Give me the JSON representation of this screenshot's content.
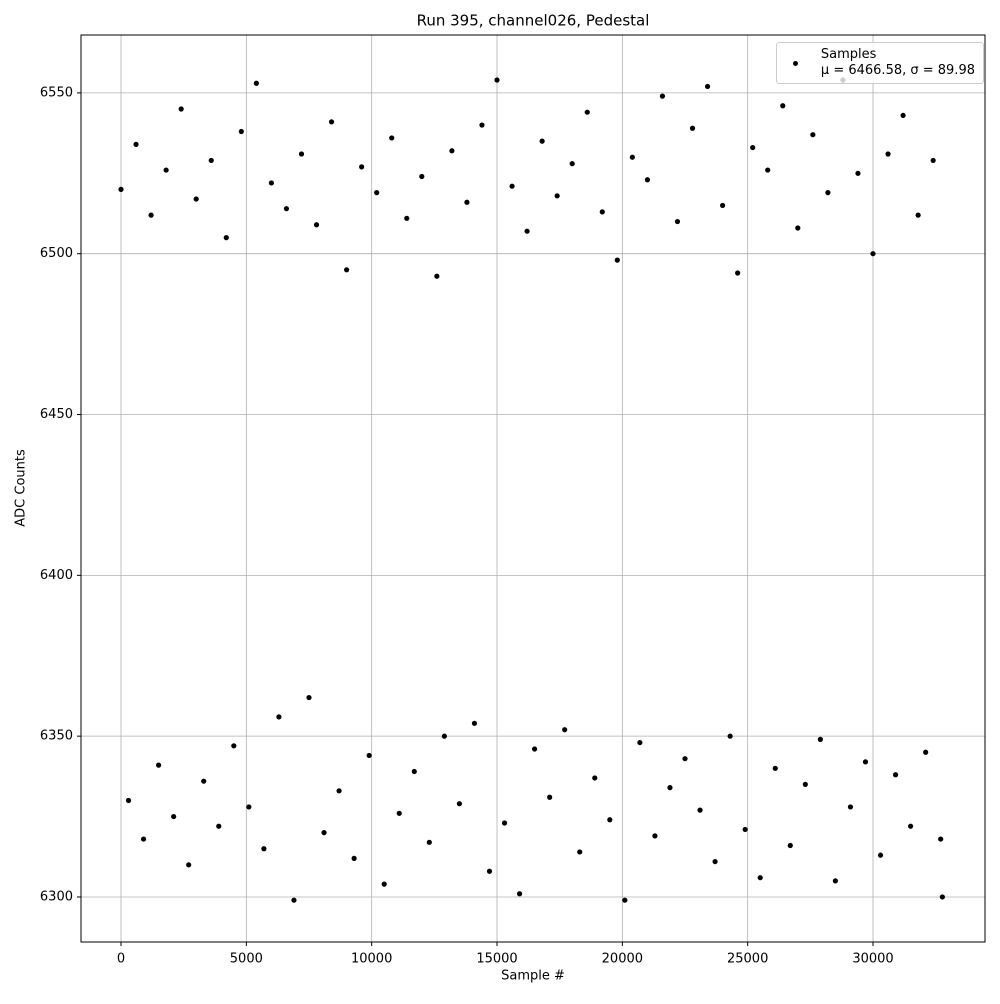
{
  "chart_data": {
    "type": "scatter",
    "title": "Run 395, channel026, Pedestal",
    "x_label": "Sample #",
    "y_label": "ADC Counts",
    "xlim": [
      -1596,
      34468
    ],
    "ylim": [
      6286,
      6568
    ],
    "xticks": [
      0,
      5000,
      10000,
      15000,
      20000,
      25000,
      30000
    ],
    "yticks": [
      6300,
      6350,
      6400,
      6450,
      6500,
      6550
    ],
    "grid": true,
    "legend_position": "upper right",
    "series": [
      {
        "name": "Samples\nμ = 6466.58, σ = 89.98",
        "color": "#000000",
        "x": [
          0,
          300,
          600,
          900,
          1200,
          1500,
          1800,
          2100,
          2400,
          2700,
          3000,
          3300,
          3600,
          3900,
          4200,
          4500,
          4800,
          5100,
          5400,
          5700,
          6000,
          6300,
          6600,
          6900,
          7200,
          7500,
          7800,
          8100,
          8400,
          8700,
          9000,
          9300,
          9600,
          9900,
          10200,
          10500,
          10800,
          11100,
          11400,
          11700,
          12000,
          12300,
          12600,
          12900,
          13200,
          13500,
          13800,
          14100,
          14400,
          14700,
          15000,
          15300,
          15600,
          15900,
          16200,
          16500,
          16800,
          17100,
          17400,
          17700,
          18000,
          18300,
          18600,
          18900,
          19200,
          19500,
          19800,
          20100,
          20400,
          20700,
          21000,
          21300,
          21600,
          21900,
          22200,
          22500,
          22800,
          23100,
          23400,
          23700,
          24000,
          24300,
          24600,
          24900,
          25200,
          25500,
          25800,
          26100,
          26400,
          26700,
          27000,
          27300,
          27600,
          27900,
          28200,
          28500,
          28800,
          29100,
          29400,
          29700,
          30000,
          30300,
          30600,
          30900,
          31200,
          31500,
          31800,
          32100,
          32400,
          32700,
          32767
        ],
        "values": [
          6520,
          6330,
          6534,
          6318,
          6512,
          6341,
          6526,
          6325,
          6545,
          6310,
          6517,
          6336,
          6529,
          6322,
          6505,
          6347,
          6538,
          6328,
          6553,
          6315,
          6522,
          6356,
          6514,
          6299,
          6531,
          6362,
          6509,
          6320,
          6541,
          6333,
          6495,
          6312,
          6527,
          6344,
          6519,
          6304,
          6536,
          6326,
          6511,
          6339,
          6524,
          6317,
          6493,
          6350,
          6532,
          6329,
          6516,
          6354,
          6540,
          6308,
          6554,
          6323,
          6521,
          6301,
          6507,
          6346,
          6535,
          6331,
          6518,
          6352,
          6528,
          6314,
          6544,
          6337,
          6513,
          6324,
          6498,
          6299,
          6530,
          6348,
          6523,
          6319,
          6549,
          6334,
          6510,
          6343,
          6539,
          6327,
          6552,
          6311,
          6515,
          6350,
          6494,
          6321,
          6533,
          6306,
          6526,
          6340,
          6546,
          6316,
          6508,
          6335,
          6537,
          6349,
          6519,
          6305,
          6554,
          6328,
          6525,
          6342,
          6500,
          6313,
          6531,
          6338,
          6543,
          6322,
          6512,
          6345,
          6529,
          6318,
          6300
        ]
      }
    ]
  }
}
